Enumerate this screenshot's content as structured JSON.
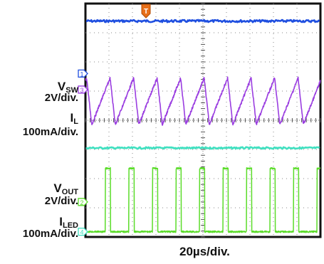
{
  "chart_data": {
    "type": "line",
    "title": "",
    "grid": true,
    "divisions": {
      "horizontal": 10,
      "vertical": 8
    },
    "timebase": "20µs/div.",
    "trigger_marker": "T",
    "switching_period_div": 1.0,
    "channels": [
      {
        "id": "1",
        "name": "VSW",
        "label_main": "V",
        "label_sub": "SW",
        "scale": "2V/div.",
        "color": "#1f4fe0",
        "marker": "1",
        "description_points": {
          "x_div": [
            0,
            10
          ],
          "level_div": [
            7.4,
            7.4
          ]
        }
      },
      {
        "id": "2",
        "name": "VOUT",
        "label_main": "V",
        "label_sub": "OUT",
        "scale": "2V/div.",
        "color": "#5bdc2a",
        "marker": "2",
        "pulse": {
          "low_div": 0.18,
          "high_div": 2.35,
          "starts_div": [
            0.85,
            1.85,
            2.85,
            3.85,
            4.85,
            5.85,
            6.85,
            7.85,
            8.85,
            9.85
          ],
          "width_div": 0.22
        }
      },
      {
        "id": "3",
        "name": "IL",
        "label_main": "I",
        "label_sub": "L",
        "scale": "100mA/div.",
        "color": "#9a3de0",
        "marker": "3",
        "triangle": {
          "min_div": 3.85,
          "max_div": 5.45,
          "peaks_div": [
            1.05,
            2.05,
            3.05,
            4.05,
            5.05,
            6.05,
            7.05,
            8.05,
            9.05,
            10.05
          ]
        }
      },
      {
        "id": "4",
        "name": "ILED",
        "label_main": "I",
        "label_sub": "LED",
        "scale": "100mA/div.",
        "color": "#40e0c0",
        "marker": "4",
        "description_points": {
          "x_div": [
            0,
            10
          ],
          "level_div": [
            3.05,
            3.05
          ]
        }
      }
    ]
  }
}
